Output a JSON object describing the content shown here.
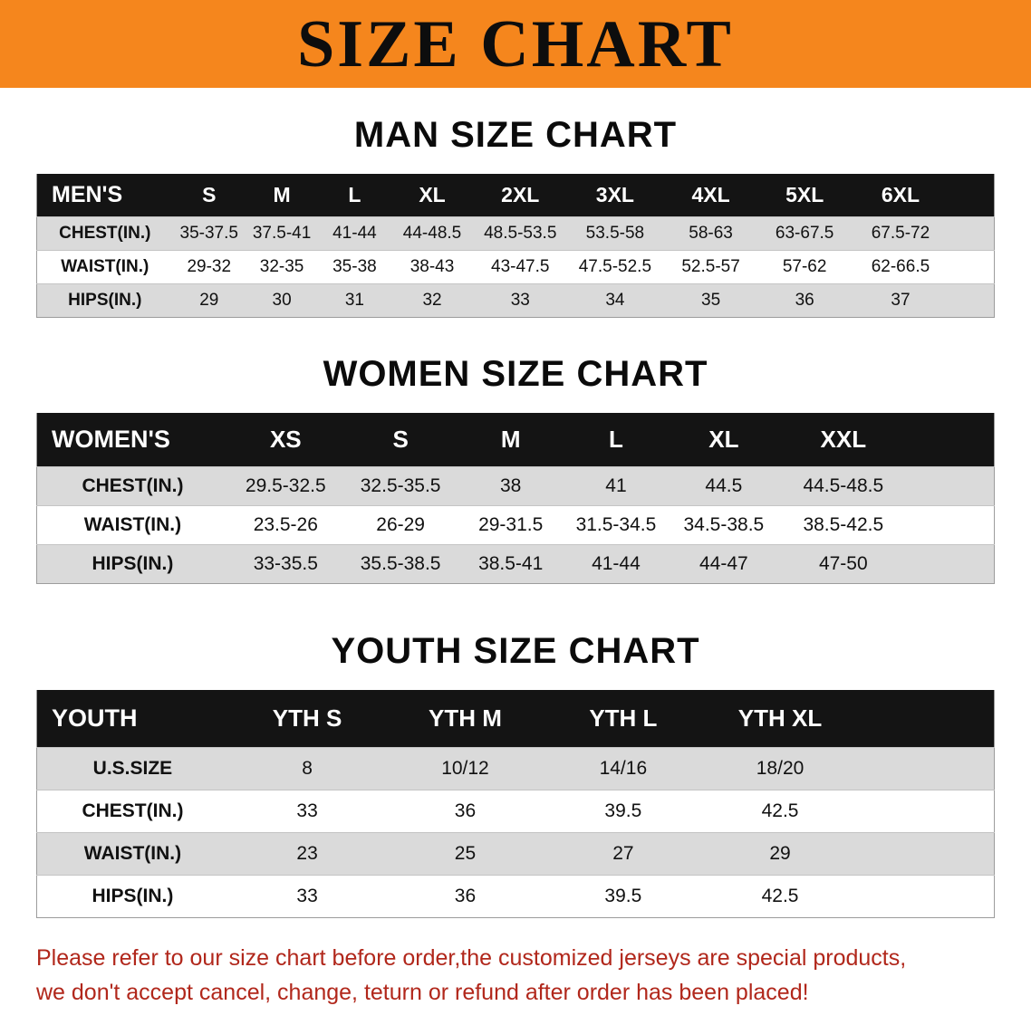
{
  "banner": {
    "title": "SIZE CHART"
  },
  "tables": {
    "men": {
      "heading": "MAN SIZE CHART",
      "columns": [
        "MEN'S",
        "S",
        "M",
        "L",
        "XL",
        "2XL",
        "3XL",
        "4XL",
        "5XL",
        "6XL"
      ],
      "rows": [
        {
          "label": "CHEST(IN.)",
          "values": [
            "35-37.5",
            "37.5-41",
            "41-44",
            "44-48.5",
            "48.5-53.5",
            "53.5-58",
            "58-63",
            "63-67.5",
            "67.5-72"
          ]
        },
        {
          "label": "WAIST(IN.)",
          "values": [
            "29-32",
            "32-35",
            "35-38",
            "38-43",
            "43-47.5",
            "47.5-52.5",
            "52.5-57",
            "57-62",
            "62-66.5"
          ]
        },
        {
          "label": "HIPS(IN.)",
          "values": [
            "29",
            "30",
            "31",
            "32",
            "33",
            "34",
            "35",
            "36",
            "37"
          ]
        }
      ]
    },
    "women": {
      "heading": "WOMEN SIZE CHART",
      "columns": [
        "WOMEN'S",
        "XS",
        "S",
        "M",
        "L",
        "XL",
        "XXL"
      ],
      "rows": [
        {
          "label": "CHEST(IN.)",
          "values": [
            "29.5-32.5",
            "32.5-35.5",
            "38",
            "41",
            "44.5",
            "44.5-48.5"
          ]
        },
        {
          "label": "WAIST(IN.)",
          "values": [
            "23.5-26",
            "26-29",
            "29-31.5",
            "31.5-34.5",
            "34.5-38.5",
            "38.5-42.5"
          ]
        },
        {
          "label": "HIPS(IN.)",
          "values": [
            "33-35.5",
            "35.5-38.5",
            "38.5-41",
            "41-44",
            "44-47",
            "47-50"
          ]
        }
      ]
    },
    "youth": {
      "heading": "YOUTH SIZE CHART",
      "columns": [
        "YOUTH",
        "YTH S",
        "YTH M",
        "YTH L",
        "YTH XL"
      ],
      "rows": [
        {
          "label": "U.S.SIZE",
          "values": [
            "8",
            "10/12",
            "14/16",
            "18/20"
          ]
        },
        {
          "label": "CHEST(IN.)",
          "values": [
            "33",
            "36",
            "39.5",
            "42.5"
          ]
        },
        {
          "label": "WAIST(IN.)",
          "values": [
            "23",
            "25",
            "27",
            "29"
          ]
        },
        {
          "label": "HIPS(IN.)",
          "values": [
            "33",
            "36",
            "39.5",
            "42.5"
          ]
        }
      ]
    }
  },
  "footer": {
    "line1": "Please refer to our size chart before order,the customized jerseys are special products,",
    "line2": "we don't accept cancel, change, teturn or refund after order has been placed!"
  },
  "colors": {
    "banner_bg": "#F5861D",
    "header_bg": "#141414",
    "row_alt_bg": "#DADADA",
    "footer_text": "#B1271B"
  }
}
